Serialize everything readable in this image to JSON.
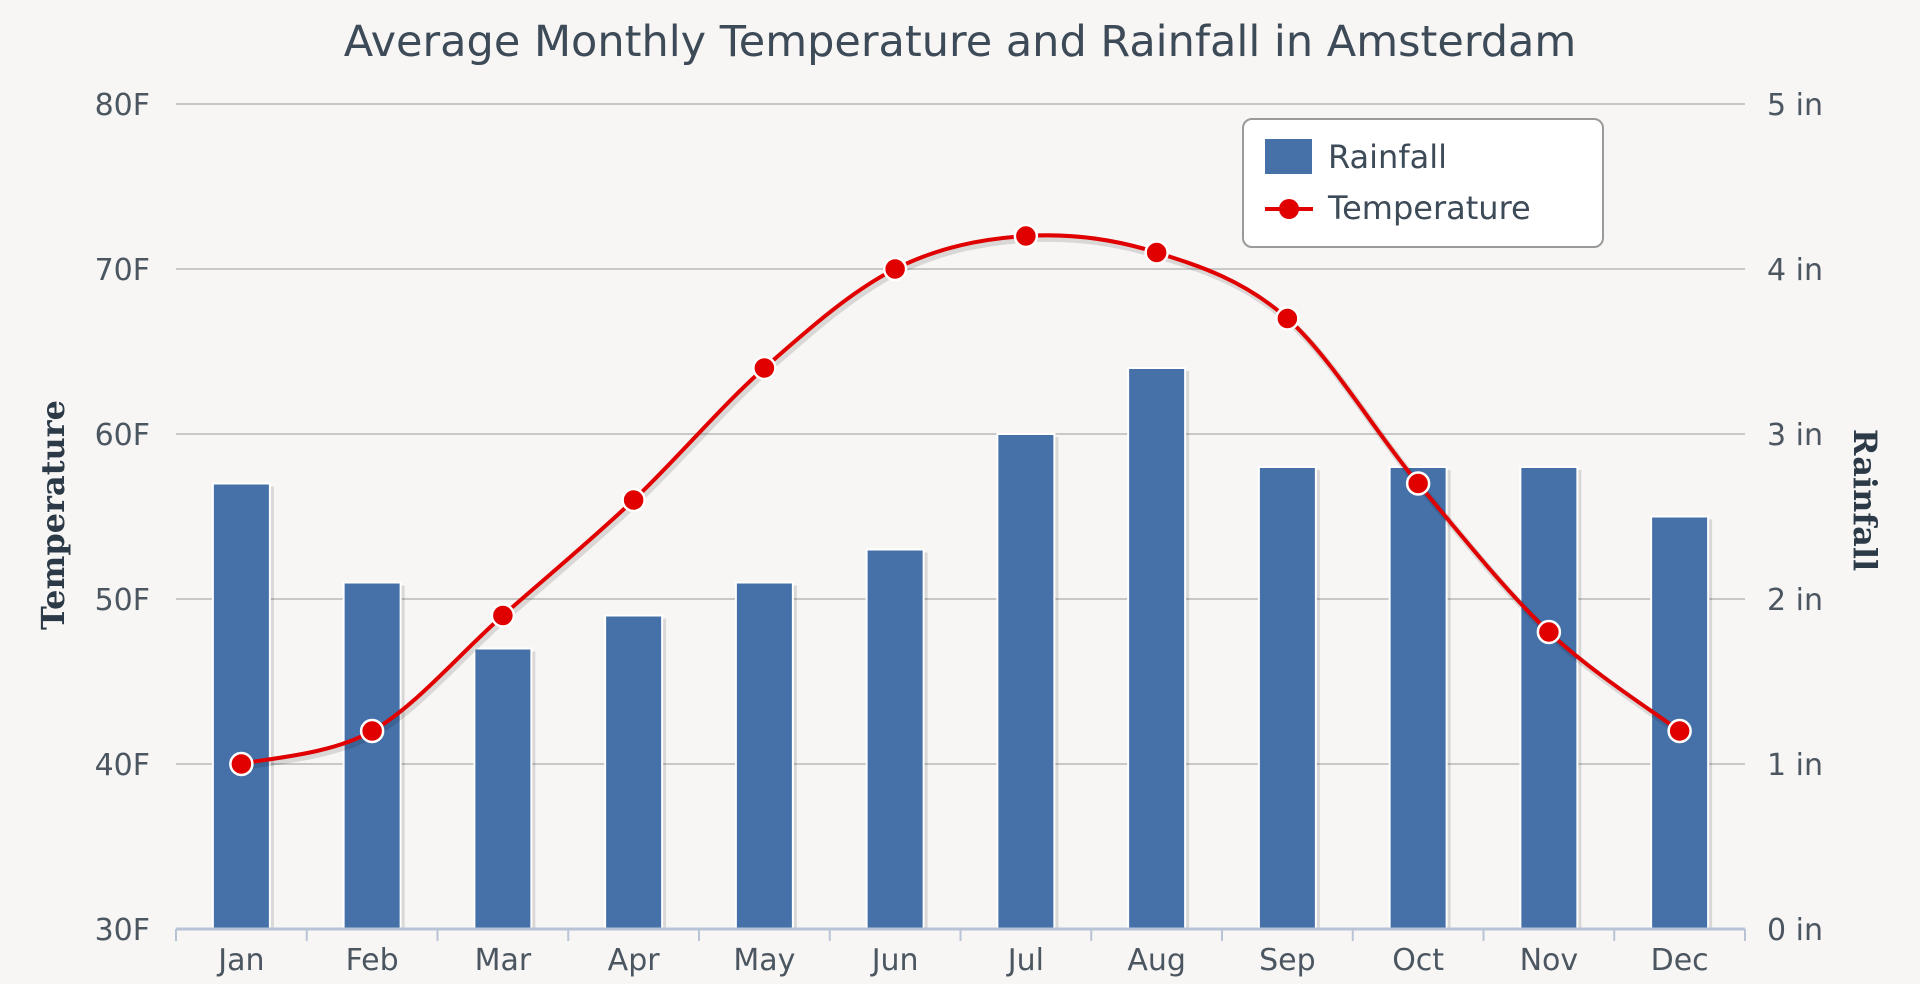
{
  "chart_data": {
    "type": "bar+line",
    "title": "Average Monthly Temperature and Rainfall in Amsterdam",
    "categories": [
      "Jan",
      "Feb",
      "Mar",
      "Apr",
      "May",
      "Jun",
      "Jul",
      "Aug",
      "Sep",
      "Oct",
      "Nov",
      "Dec"
    ],
    "series": [
      {
        "name": "Rainfall",
        "type": "bar",
        "axis": "right",
        "color": "#4571a8",
        "values": [
          2.7,
          2.1,
          1.7,
          1.9,
          2.1,
          2.3,
          3.0,
          3.4,
          2.8,
          2.8,
          2.8,
          2.5
        ]
      },
      {
        "name": "Temperature",
        "type": "line",
        "axis": "left",
        "color": "#e10000",
        "values": [
          40,
          42,
          49,
          56,
          64,
          70,
          72,
          71,
          67,
          57,
          48,
          42
        ]
      }
    ],
    "left_axis": {
      "label": "Temperature",
      "ylim": [
        30,
        80
      ],
      "ticks": [
        30,
        40,
        50,
        60,
        70,
        80
      ],
      "tick_labels": [
        "30F",
        "40F",
        "50F",
        "60F",
        "70F",
        "80F"
      ]
    },
    "right_axis": {
      "label": "Rainfall",
      "ylim": [
        0,
        5
      ],
      "ticks": [
        0,
        1,
        2,
        3,
        4,
        5
      ],
      "tick_labels": [
        "0 in",
        "1 in",
        "2 in",
        "3 in",
        "4 in",
        "5 in"
      ]
    },
    "grid": true,
    "legend_position": "top-right"
  }
}
